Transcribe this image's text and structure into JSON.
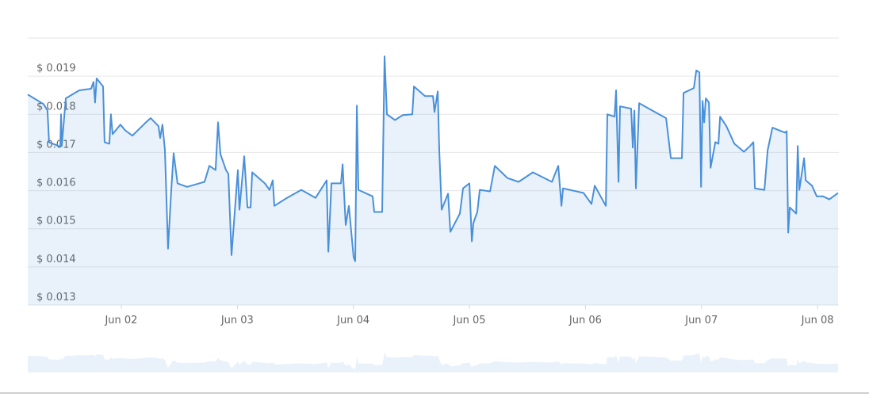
{
  "chart_data": {
    "type": "line",
    "x": [
      1.194,
      1.33,
      1.364,
      1.378,
      1.474,
      1.481,
      1.487,
      1.522,
      1.638,
      1.74,
      1.761,
      1.774,
      1.788,
      1.843,
      1.856,
      1.897,
      1.911,
      1.925,
      1.993,
      2.034,
      2.096,
      2.212,
      2.253,
      2.321,
      2.335,
      2.355,
      2.376,
      2.403,
      2.431,
      2.451,
      2.485,
      2.567,
      2.718,
      2.759,
      2.813,
      2.834,
      2.854,
      2.902,
      2.923,
      2.95,
      3.005,
      3.018,
      3.059,
      3.087,
      3.114,
      3.128,
      3.237,
      3.278,
      3.305,
      3.319,
      3.428,
      3.551,
      3.674,
      3.77,
      3.784,
      3.811,
      3.893,
      3.907,
      3.934,
      3.961,
      4.002,
      4.016,
      4.03,
      4.043,
      4.166,
      4.18,
      4.248,
      4.269,
      4.289,
      4.358,
      4.426,
      4.508,
      4.522,
      4.617,
      4.686,
      4.699,
      4.727,
      4.74,
      4.761,
      4.816,
      4.836,
      4.918,
      4.945,
      5.0,
      5.021,
      5.034,
      5.068,
      5.089,
      5.178,
      5.219,
      5.328,
      5.424,
      5.547,
      5.711,
      5.766,
      5.793,
      5.807,
      5.984,
      6.052,
      6.08,
      6.176,
      6.189,
      6.251,
      6.264,
      6.285,
      6.298,
      6.394,
      6.408,
      6.422,
      6.435,
      6.463,
      6.599,
      6.695,
      6.736,
      6.831,
      6.845,
      6.934,
      6.955,
      6.982,
      6.996,
      7.009,
      7.023,
      7.037,
      7.064,
      7.078,
      7.119,
      7.146,
      7.16,
      7.214,
      7.283,
      7.365,
      7.419,
      7.447,
      7.46,
      7.542,
      7.57,
      7.611,
      7.72,
      7.734,
      7.747,
      7.761,
      7.816,
      7.829,
      7.843,
      7.884,
      7.898,
      7.952,
      7.993,
      8.048,
      8.102,
      8.177
    ],
    "series": [
      {
        "color": "#4a90d9",
        "values": [
          0.01852,
          0.01827,
          0.0181,
          0.01727,
          0.01715,
          0.018,
          0.01717,
          0.01842,
          0.01863,
          0.01867,
          0.01885,
          0.01831,
          0.01894,
          0.01873,
          0.01727,
          0.01723,
          0.018,
          0.01748,
          0.01773,
          0.01758,
          0.01744,
          0.01779,
          0.0179,
          0.01769,
          0.01738,
          0.01773,
          0.01706,
          0.01448,
          0.01602,
          0.01698,
          0.01619,
          0.0161,
          0.01623,
          0.01665,
          0.01654,
          0.01779,
          0.01696,
          0.01654,
          0.01644,
          0.01431,
          0.01654,
          0.0155,
          0.0169,
          0.01556,
          0.01556,
          0.01648,
          0.01619,
          0.01602,
          0.01627,
          0.0156,
          0.01581,
          0.01602,
          0.01581,
          0.01627,
          0.0144,
          0.01619,
          0.01619,
          0.01669,
          0.0151,
          0.0156,
          0.01425,
          0.01415,
          0.01823,
          0.01602,
          0.01585,
          0.01544,
          0.01544,
          0.01952,
          0.018,
          0.01785,
          0.01798,
          0.018,
          0.01873,
          0.01848,
          0.01848,
          0.01806,
          0.0186,
          0.01706,
          0.0155,
          0.01592,
          0.01492,
          0.0154,
          0.01606,
          0.01619,
          0.01467,
          0.01515,
          0.01544,
          0.01602,
          0.01598,
          0.01665,
          0.01633,
          0.01623,
          0.01648,
          0.01623,
          0.01665,
          0.0156,
          0.01606,
          0.01594,
          0.01565,
          0.01613,
          0.0156,
          0.018,
          0.01794,
          0.01863,
          0.01623,
          0.01821,
          0.01815,
          0.01713,
          0.0181,
          0.01606,
          0.01829,
          0.01806,
          0.0179,
          0.01685,
          0.01685,
          0.01856,
          0.01869,
          0.01915,
          0.0191,
          0.0161,
          0.01835,
          0.01779,
          0.01842,
          0.01831,
          0.0166,
          0.01727,
          0.01723,
          0.01794,
          0.01769,
          0.01723,
          0.01702,
          0.01717,
          0.01727,
          0.01606,
          0.01602,
          0.01706,
          0.01765,
          0.01752,
          0.01756,
          0.0149,
          0.01556,
          0.0154,
          0.01717,
          0.01602,
          0.01685,
          0.01627,
          0.01613,
          0.01585,
          0.01585,
          0.01577,
          0.01594
        ]
      }
    ],
    "xlim": [
      1.194,
      8.177
    ],
    "ylim": [
      0.013,
      0.02
    ],
    "xticks": [
      {
        "value": 2,
        "label": "Jun 02"
      },
      {
        "value": 3,
        "label": "Jun 03"
      },
      {
        "value": 4,
        "label": "Jun 04"
      },
      {
        "value": 5,
        "label": "Jun 05"
      },
      {
        "value": 6,
        "label": "Jun 06"
      },
      {
        "value": 7,
        "label": "Jun 07"
      },
      {
        "value": 8,
        "label": "Jun 08"
      }
    ],
    "yticks": [
      {
        "value": 0.013,
        "label": "$ 0.013"
      },
      {
        "value": 0.014,
        "label": "$ 0.014"
      },
      {
        "value": 0.015,
        "label": "$ 0.015"
      },
      {
        "value": 0.016,
        "label": "$ 0.016"
      },
      {
        "value": 0.017,
        "label": "$ 0.017"
      },
      {
        "value": 0.018,
        "label": "$ 0.018"
      },
      {
        "value": 0.019,
        "label": "$ 0.019"
      }
    ],
    "grid": true
  }
}
